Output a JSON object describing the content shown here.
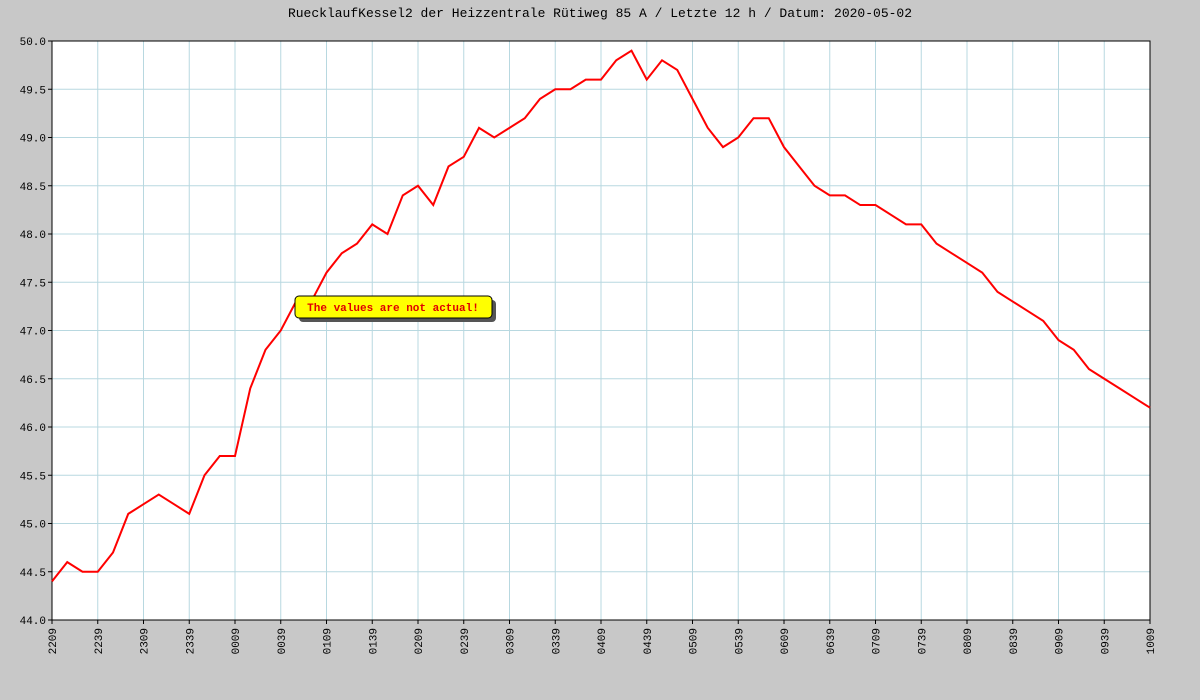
{
  "chart_data": {
    "type": "line",
    "title": "RuecklaufKessel2 der Heizzentrale Rütiweg 85 A / Letzte 12 h / Datum: 2020-05-02",
    "annotation": "The values are not actual!",
    "x": [
      0,
      10,
      20,
      30,
      40,
      50,
      60,
      70,
      80,
      90,
      100,
      110,
      120,
      130,
      140,
      150,
      160,
      170,
      180,
      190,
      200,
      210,
      220,
      230,
      240,
      250,
      260,
      270,
      280,
      290,
      300,
      310,
      320,
      330,
      340,
      350,
      360,
      370,
      380,
      390,
      400,
      410,
      420,
      430,
      440,
      450,
      460,
      470,
      480,
      490,
      500,
      510,
      520,
      530,
      540,
      550,
      560,
      570,
      580,
      590,
      600,
      610,
      620,
      630,
      640,
      650,
      660,
      670,
      680,
      690,
      700,
      710,
      720
    ],
    "series": [
      {
        "name": "RuecklaufKessel2",
        "color": "#ff0000",
        "values": [
          44.4,
          44.6,
          44.5,
          44.5,
          44.7,
          45.1,
          45.2,
          45.3,
          45.2,
          45.1,
          45.5,
          45.7,
          45.7,
          46.4,
          46.8,
          47.0,
          47.3,
          47.3,
          47.6,
          47.8,
          47.9,
          48.1,
          48.0,
          48.4,
          48.5,
          48.3,
          48.7,
          48.8,
          49.1,
          49.0,
          49.1,
          49.2,
          49.4,
          49.5,
          49.5,
          49.6,
          49.6,
          49.8,
          49.9,
          49.6,
          49.8,
          49.7,
          49.4,
          49.1,
          48.9,
          49.0,
          49.2,
          49.2,
          48.9,
          48.7,
          48.5,
          48.4,
          48.4,
          48.3,
          48.3,
          48.2,
          48.1,
          48.1,
          47.9,
          47.8,
          47.7,
          47.6,
          47.4,
          47.3,
          47.2,
          47.1,
          46.9,
          46.8,
          46.6,
          46.5,
          46.4,
          46.3,
          46.2
        ]
      }
    ],
    "xlim": [
      0,
      720
    ],
    "xticks": [
      {
        "value": 0,
        "label": "2209"
      },
      {
        "value": 30,
        "label": "2239"
      },
      {
        "value": 60,
        "label": "2309"
      },
      {
        "value": 90,
        "label": "2339"
      },
      {
        "value": 120,
        "label": "0009"
      },
      {
        "value": 150,
        "label": "0039"
      },
      {
        "value": 180,
        "label": "0109"
      },
      {
        "value": 210,
        "label": "0139"
      },
      {
        "value": 240,
        "label": "0209"
      },
      {
        "value": 270,
        "label": "0239"
      },
      {
        "value": 300,
        "label": "0309"
      },
      {
        "value": 330,
        "label": "0339"
      },
      {
        "value": 360,
        "label": "0409"
      },
      {
        "value": 390,
        "label": "0439"
      },
      {
        "value": 420,
        "label": "0509"
      },
      {
        "value": 450,
        "label": "0539"
      },
      {
        "value": 480,
        "label": "0609"
      },
      {
        "value": 510,
        "label": "0639"
      },
      {
        "value": 540,
        "label": "0709"
      },
      {
        "value": 570,
        "label": "0739"
      },
      {
        "value": 600,
        "label": "0809"
      },
      {
        "value": 630,
        "label": "0839"
      },
      {
        "value": 660,
        "label": "0909"
      },
      {
        "value": 690,
        "label": "0939"
      },
      {
        "value": 720,
        "label": "1009"
      }
    ],
    "ylim": [
      44,
      50
    ],
    "yticks": [
      {
        "value": 44,
        "label": "44.0"
      },
      {
        "value": 44.5,
        "label": "44.5"
      },
      {
        "value": 45,
        "label": "45.0"
      },
      {
        "value": 45.5,
        "label": "45.5"
      },
      {
        "value": 46,
        "label": "46.0"
      },
      {
        "value": 46.5,
        "label": "46.5"
      },
      {
        "value": 47,
        "label": "47.0"
      },
      {
        "value": 47.5,
        "label": "47.5"
      },
      {
        "value": 48,
        "label": "48.0"
      },
      {
        "value": 48.5,
        "label": "48.5"
      },
      {
        "value": 49,
        "label": "49.0"
      },
      {
        "value": 49.5,
        "label": "49.5"
      },
      {
        "value": 50,
        "label": "50.0"
      }
    ],
    "grid": true
  }
}
